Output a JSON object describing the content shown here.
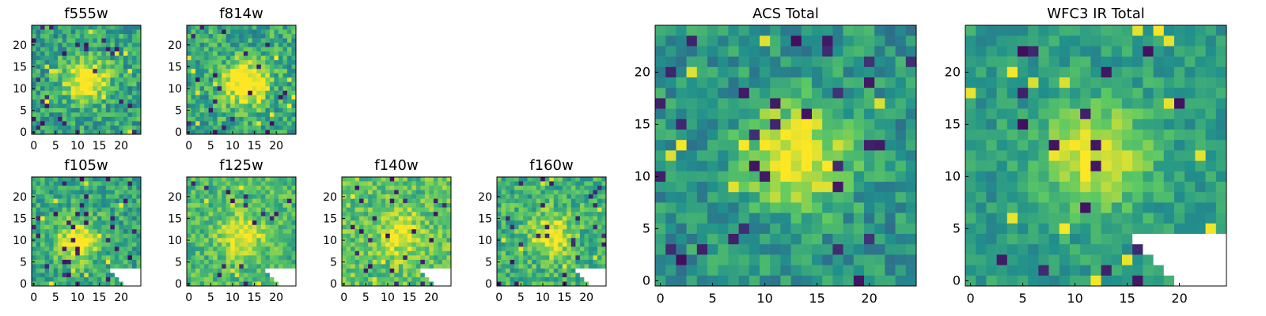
{
  "figure": {
    "colormap": "viridis",
    "colors": {
      "low": "#440154",
      "mid_low": "#3b528b",
      "mid": "#21918c",
      "mid_high": "#5ec962",
      "high": "#fde725",
      "masked": "#ffffff"
    }
  },
  "chart_data": [
    {
      "type": "heatmap",
      "title": "f555w",
      "grid_size": 25,
      "xticks": [
        0,
        5,
        10,
        15,
        20
      ],
      "yticks": [
        0,
        5,
        10,
        15,
        20
      ],
      "xlim": [
        -0.5,
        24.5
      ],
      "ylim": [
        -0.5,
        24.5
      ],
      "peak_center": [
        12,
        12
      ],
      "peak_strength": 0.55,
      "background_level": 0.58,
      "noise_level": 0.2,
      "mask_bottom_right": false
    },
    {
      "type": "heatmap",
      "title": "f814w",
      "grid_size": 25,
      "xticks": [
        0,
        5,
        10,
        15,
        20
      ],
      "yticks": [
        0,
        5,
        10,
        15,
        20
      ],
      "xlim": [
        -0.5,
        24.5
      ],
      "ylim": [
        -0.5,
        24.5
      ],
      "peak_center": [
        13,
        11
      ],
      "peak_strength": 0.6,
      "background_level": 0.6,
      "noise_level": 0.2,
      "mask_bottom_right": false
    },
    {
      "type": "heatmap",
      "title": "f105w",
      "grid_size": 25,
      "xticks": [
        0,
        5,
        10,
        15,
        20
      ],
      "yticks": [
        0,
        5,
        10,
        15,
        20
      ],
      "xlim": [
        -0.5,
        24.5
      ],
      "ylim": [
        -0.5,
        24.5
      ],
      "peak_center": [
        10,
        10
      ],
      "peak_strength": 0.45,
      "background_level": 0.6,
      "noise_level": 0.18,
      "mask_bottom_right": true
    },
    {
      "type": "heatmap",
      "title": "f125w",
      "grid_size": 25,
      "xticks": [
        0,
        5,
        10,
        15,
        20
      ],
      "yticks": [
        0,
        5,
        10,
        15,
        20
      ],
      "xlim": [
        -0.5,
        24.5
      ],
      "ylim": [
        -0.5,
        24.5
      ],
      "peak_center": [
        12,
        11
      ],
      "peak_strength": 0.35,
      "background_level": 0.68,
      "noise_level": 0.16,
      "mask_bottom_right": true
    },
    {
      "type": "heatmap",
      "title": "f140w",
      "grid_size": 25,
      "xticks": [
        0,
        5,
        10,
        15,
        20
      ],
      "yticks": [
        0,
        5,
        10,
        15,
        20
      ],
      "xlim": [
        -0.5,
        24.5
      ],
      "ylim": [
        -0.5,
        24.5
      ],
      "peak_center": [
        13,
        11
      ],
      "peak_strength": 0.3,
      "background_level": 0.72,
      "noise_level": 0.18,
      "mask_bottom_right": true
    },
    {
      "type": "heatmap",
      "title": "f160w",
      "grid_size": 25,
      "xticks": [
        0,
        5,
        10,
        15,
        20
      ],
      "yticks": [
        0,
        5,
        10,
        15,
        20
      ],
      "xlim": [
        -0.5,
        24.5
      ],
      "ylim": [
        -0.5,
        24.5
      ],
      "peak_center": [
        12,
        11
      ],
      "peak_strength": 0.4,
      "background_level": 0.64,
      "noise_level": 0.18,
      "mask_bottom_right": true
    },
    {
      "type": "heatmap",
      "title": "ACS Total",
      "grid_size": 25,
      "xticks": [
        0,
        5,
        10,
        15,
        20
      ],
      "yticks": [
        0,
        5,
        10,
        15,
        20
      ],
      "xlim": [
        -0.5,
        24.5
      ],
      "ylim": [
        -0.5,
        24.5
      ],
      "peak_center": [
        13,
        12
      ],
      "peak_strength": 0.55,
      "background_level": 0.52,
      "noise_level": 0.16,
      "mask_bottom_right": false
    },
    {
      "type": "heatmap",
      "title": "WFC3 IR Total",
      "grid_size": 25,
      "xticks": [
        0,
        5,
        10,
        15,
        20
      ],
      "yticks": [
        0,
        5,
        10,
        15,
        20
      ],
      "xlim": [
        -0.5,
        24.5
      ],
      "ylim": [
        -0.5,
        24.5
      ],
      "peak_center": [
        12,
        12
      ],
      "peak_strength": 0.45,
      "background_level": 0.55,
      "noise_level": 0.12,
      "mask_bottom_right": true
    }
  ]
}
